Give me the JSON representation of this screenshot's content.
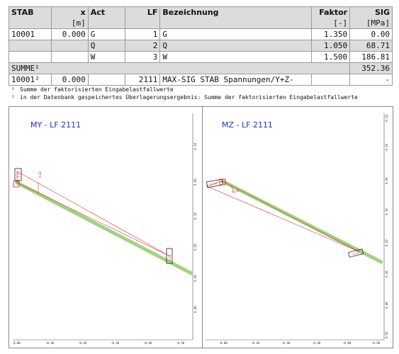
{
  "table": {
    "headers": [
      {
        "l1": "STAB",
        "l2": ""
      },
      {
        "l1": "x",
        "l2": "[m]"
      },
      {
        "l1": "Act",
        "l2": ""
      },
      {
        "l1": "LF",
        "l2": ""
      },
      {
        "l1": "Bezeichnung",
        "l2": ""
      },
      {
        "l1": "Faktor",
        "l2": "[-]"
      },
      {
        "l1": "SIG",
        "l2": "[MPa]"
      }
    ],
    "rows": [
      {
        "stab": "10001",
        "x": "0.000",
        "act": "G",
        "lf": "1",
        "bez": "G",
        "faktor": "1.350",
        "sig": "0.00"
      },
      {
        "stab": "",
        "x": "",
        "act": "Q",
        "lf": "2",
        "bez": "Q",
        "faktor": "1.050",
        "sig": "68.71"
      },
      {
        "stab": "",
        "x": "",
        "act": "W",
        "lf": "3",
        "bez": "W",
        "faktor": "1.500",
        "sig": "186.81"
      }
    ],
    "summe": {
      "label": "SUMME¹",
      "sig": "352.36"
    },
    "db_row": {
      "stab": "10001²",
      "x": "0.000",
      "act": "",
      "lf": "2111",
      "bez": "MAX-SIG STAB Spannungen/Y+Z-",
      "faktor": "",
      "sig": "-"
    }
  },
  "footnotes": [
    {
      "mark": "¹",
      "text": "Summe der faktorisierten Eingabelastfallwerte"
    },
    {
      "mark": "²",
      "text": "in der Datenbank gespeichertes Überlagerungsergebnis: Summe der faktorisierten Eingabelastfallwerte"
    }
  ],
  "plots": [
    {
      "title": "MY - LF 2111",
      "x_ticks": [
        "0.00",
        "-0.10",
        "-0.20",
        "-0.30",
        "-0.40",
        "-0.50"
      ],
      "y_ticks": [
        "-0.10",
        "0.00",
        "0.10",
        "0.20",
        "0.30",
        "0.40"
      ],
      "labels": [
        "-1.27",
        "-0.42",
        "-1.08"
      ]
    },
    {
      "title": "MZ - LF 2111",
      "x_ticks": [
        "0.00",
        "-0.10",
        "-0.20",
        "-0.30",
        "-0.40",
        "-0.50"
      ],
      "y_ticks": [
        "-0.20",
        "-0.10",
        "0.00",
        "0.10",
        "0.20",
        "0.30",
        "0.40",
        "0.50"
      ],
      "labels": [
        "-0.70",
        "-0.19",
        "-0.43"
      ]
    }
  ],
  "colors": {
    "accent_title": "#1a32d2",
    "member": "#9fd483",
    "diagram": "#e03030",
    "header_bg": "#dcdcdc"
  }
}
